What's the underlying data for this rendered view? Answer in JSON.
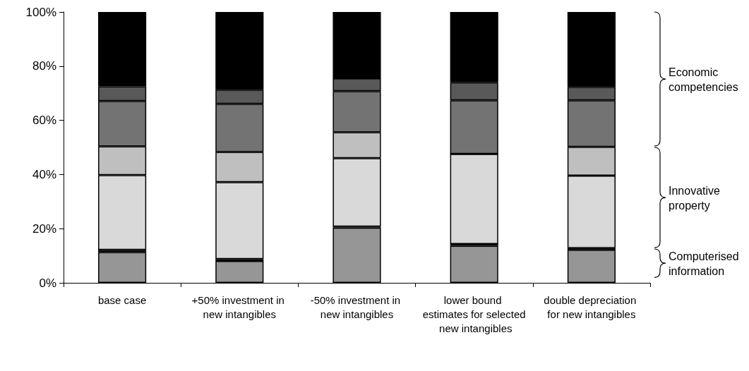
{
  "chart_data": {
    "type": "bar",
    "stacked": true,
    "categories": [
      "base case",
      "+50% investment in new intangibles",
      "-50% investment in new intangibles",
      "lower bound estimates for selected new intangibles",
      "double depreciation for new intangibles"
    ],
    "series": [
      {
        "color": "#969696",
        "values": [
          11.3,
          8.1,
          20.4,
          13.7,
          12.2
        ]
      },
      {
        "color": "#000000",
        "values": [
          0.9,
          0.7,
          0.4,
          0.6,
          0.6
        ]
      },
      {
        "color": "#d9d9d9",
        "values": [
          27.6,
          28.4,
          25.2,
          33.3,
          26.8
        ]
      },
      {
        "color": "#bfbfbf",
        "values": [
          10.6,
          11.1,
          9.6,
          0,
          10.6
        ]
      },
      {
        "color": "#737373",
        "values": [
          16.7,
          17.8,
          15.2,
          19.8,
          17.2
        ]
      },
      {
        "color": "#595959",
        "values": [
          5.4,
          5.2,
          4.7,
          6.6,
          4.9
        ]
      },
      {
        "color": "#000000",
        "values": [
          27.5,
          28.7,
          24.5,
          26.0,
          27.7
        ]
      }
    ],
    "ylim": [
      0,
      100
    ],
    "yticks": [
      {
        "value": 0,
        "label": "0%"
      },
      {
        "value": 20,
        "label": "20%"
      },
      {
        "value": 40,
        "label": "40%"
      },
      {
        "value": 60,
        "label": "60%"
      },
      {
        "value": 80,
        "label": "80%"
      },
      {
        "value": 100,
        "label": "100%"
      }
    ],
    "grid": false,
    "annotations": [
      "Economic competencies",
      "Innovative property",
      "Computerised information"
    ]
  }
}
